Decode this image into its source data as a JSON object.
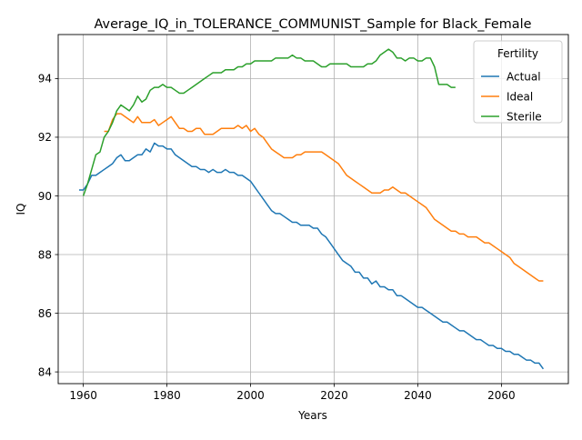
{
  "chart_data": {
    "type": "line",
    "title": "Average_IQ_in_TOLERANCE_COMMUNIST_Sample for Black_Female",
    "xlabel": "Years",
    "ylabel": "IQ",
    "xlim": [
      1954,
      2076
    ],
    "ylim": [
      83.6,
      95.5
    ],
    "xticks": [
      1960,
      1980,
      2000,
      2020,
      2040,
      2060
    ],
    "yticks": [
      84,
      86,
      88,
      90,
      92,
      94
    ],
    "grid": true,
    "legend": {
      "title": "Fertility",
      "position": "upper-right"
    },
    "series": [
      {
        "name": "Actual",
        "color": "#1f77b4",
        "x": [
          1959,
          1960,
          1961,
          1962,
          1963,
          1964,
          1965,
          1966,
          1967,
          1968,
          1969,
          1970,
          1971,
          1972,
          1973,
          1974,
          1975,
          1976,
          1977,
          1978,
          1979,
          1980,
          1981,
          1982,
          1983,
          1984,
          1985,
          1986,
          1987,
          1988,
          1989,
          1990,
          1991,
          1992,
          1993,
          1994,
          1995,
          1996,
          1997,
          1998,
          1999,
          2000,
          2001,
          2002,
          2003,
          2004,
          2005,
          2006,
          2007,
          2008,
          2009,
          2010,
          2011,
          2012,
          2013,
          2014,
          2015,
          2016,
          2017,
          2018,
          2019,
          2020,
          2021,
          2022,
          2023,
          2024,
          2025,
          2026,
          2027,
          2028,
          2029,
          2030,
          2031,
          2032,
          2033,
          2034,
          2035,
          2036,
          2037,
          2038,
          2039,
          2040,
          2041,
          2042,
          2043,
          2044,
          2045,
          2046,
          2047,
          2048,
          2049,
          2050,
          2051,
          2052,
          2053,
          2054,
          2055,
          2056,
          2057,
          2058,
          2059,
          2060,
          2061,
          2062,
          2063,
          2064,
          2065,
          2066,
          2067,
          2068,
          2069,
          2070
        ],
        "values": [
          90.2,
          90.2,
          90.4,
          90.7,
          90.7,
          90.8,
          90.9,
          91.0,
          91.1,
          91.3,
          91.4,
          91.2,
          91.2,
          91.3,
          91.4,
          91.4,
          91.6,
          91.5,
          91.8,
          91.7,
          91.7,
          91.6,
          91.6,
          91.4,
          91.3,
          91.2,
          91.1,
          91.0,
          91.0,
          90.9,
          90.9,
          90.8,
          90.9,
          90.8,
          90.8,
          90.9,
          90.8,
          90.8,
          90.7,
          90.7,
          90.6,
          90.5,
          90.3,
          90.1,
          89.9,
          89.7,
          89.5,
          89.4,
          89.4,
          89.3,
          89.2,
          89.1,
          89.1,
          89.0,
          89.0,
          89.0,
          88.9,
          88.9,
          88.7,
          88.6,
          88.4,
          88.2,
          88.0,
          87.8,
          87.7,
          87.6,
          87.4,
          87.4,
          87.2,
          87.2,
          87.0,
          87.1,
          86.9,
          86.9,
          86.8,
          86.8,
          86.6,
          86.6,
          86.5,
          86.4,
          86.3,
          86.2,
          86.2,
          86.1,
          86.0,
          85.9,
          85.8,
          85.7,
          85.7,
          85.6,
          85.5,
          85.4,
          85.4,
          85.3,
          85.2,
          85.1,
          85.1,
          85.0,
          84.9,
          84.9,
          84.8,
          84.8,
          84.7,
          84.7,
          84.6,
          84.6,
          84.5,
          84.4,
          84.4,
          84.3,
          84.3,
          84.1
        ]
      },
      {
        "name": "Ideal",
        "color": "#ff7f0e",
        "x": [
          1965,
          1966,
          1967,
          1968,
          1969,
          1970,
          1971,
          1972,
          1973,
          1974,
          1975,
          1976,
          1977,
          1978,
          1979,
          1980,
          1981,
          1982,
          1983,
          1984,
          1985,
          1986,
          1987,
          1988,
          1989,
          1990,
          1991,
          1992,
          1993,
          1994,
          1995,
          1996,
          1997,
          1998,
          1999,
          2000,
          2001,
          2002,
          2003,
          2004,
          2005,
          2006,
          2007,
          2008,
          2009,
          2010,
          2011,
          2012,
          2013,
          2014,
          2015,
          2016,
          2017,
          2018,
          2019,
          2020,
          2021,
          2022,
          2023,
          2024,
          2025,
          2026,
          2027,
          2028,
          2029,
          2030,
          2031,
          2032,
          2033,
          2034,
          2035,
          2036,
          2037,
          2038,
          2039,
          2040,
          2041,
          2042,
          2043,
          2044,
          2045,
          2046,
          2047,
          2048,
          2049,
          2050,
          2051,
          2052,
          2053,
          2054,
          2055,
          2056,
          2057,
          2058,
          2059,
          2060,
          2061,
          2062,
          2063,
          2064,
          2065,
          2066,
          2067,
          2068,
          2069,
          2070
        ],
        "values": [
          92.2,
          92.2,
          92.6,
          92.8,
          92.8,
          92.7,
          92.6,
          92.5,
          92.7,
          92.5,
          92.5,
          92.5,
          92.6,
          92.4,
          92.5,
          92.6,
          92.7,
          92.5,
          92.3,
          92.3,
          92.2,
          92.2,
          92.3,
          92.3,
          92.1,
          92.1,
          92.1,
          92.2,
          92.3,
          92.3,
          92.3,
          92.3,
          92.4,
          92.3,
          92.4,
          92.2,
          92.3,
          92.1,
          92.0,
          91.8,
          91.6,
          91.5,
          91.4,
          91.3,
          91.3,
          91.3,
          91.4,
          91.4,
          91.5,
          91.5,
          91.5,
          91.5,
          91.5,
          91.4,
          91.3,
          91.2,
          91.1,
          90.9,
          90.7,
          90.6,
          90.5,
          90.4,
          90.3,
          90.2,
          90.1,
          90.1,
          90.1,
          90.2,
          90.2,
          90.3,
          90.2,
          90.1,
          90.1,
          90.0,
          89.9,
          89.8,
          89.7,
          89.6,
          89.4,
          89.2,
          89.1,
          89.0,
          88.9,
          88.8,
          88.8,
          88.7,
          88.7,
          88.6,
          88.6,
          88.6,
          88.5,
          88.4,
          88.4,
          88.3,
          88.2,
          88.1,
          88.0,
          87.9,
          87.7,
          87.6,
          87.5,
          87.4,
          87.3,
          87.2,
          87.1,
          87.1
        ]
      },
      {
        "name": "Sterile",
        "color": "#2ca02c",
        "x": [
          1960,
          1961,
          1962,
          1963,
          1964,
          1965,
          1966,
          1967,
          1968,
          1969,
          1970,
          1971,
          1972,
          1973,
          1974,
          1975,
          1976,
          1977,
          1978,
          1979,
          1980,
          1981,
          1982,
          1983,
          1984,
          1985,
          1986,
          1987,
          1988,
          1989,
          1990,
          1991,
          1992,
          1993,
          1994,
          1995,
          1996,
          1997,
          1998,
          1999,
          2000,
          2001,
          2002,
          2003,
          2004,
          2005,
          2006,
          2007,
          2008,
          2009,
          2010,
          2011,
          2012,
          2013,
          2014,
          2015,
          2016,
          2017,
          2018,
          2019,
          2020,
          2021,
          2022,
          2023,
          2024,
          2025,
          2026,
          2027,
          2028,
          2029,
          2030,
          2031,
          2032,
          2033,
          2034,
          2035,
          2036,
          2037,
          2038,
          2039,
          2040,
          2041,
          2042,
          2043,
          2044,
          2045,
          2046,
          2047,
          2048,
          2049
        ],
        "values": [
          90.0,
          90.4,
          90.9,
          91.4,
          91.5,
          92.0,
          92.2,
          92.5,
          92.9,
          93.1,
          93.0,
          92.9,
          93.1,
          93.4,
          93.2,
          93.3,
          93.6,
          93.7,
          93.7,
          93.8,
          93.7,
          93.7,
          93.6,
          93.5,
          93.5,
          93.6,
          93.7,
          93.8,
          93.9,
          94.0,
          94.1,
          94.2,
          94.2,
          94.2,
          94.3,
          94.3,
          94.3,
          94.4,
          94.4,
          94.5,
          94.5,
          94.6,
          94.6,
          94.6,
          94.6,
          94.6,
          94.7,
          94.7,
          94.7,
          94.7,
          94.8,
          94.7,
          94.7,
          94.6,
          94.6,
          94.6,
          94.5,
          94.4,
          94.4,
          94.5,
          94.5,
          94.5,
          94.5,
          94.5,
          94.4,
          94.4,
          94.4,
          94.4,
          94.5,
          94.5,
          94.6,
          94.8,
          94.9,
          95.0,
          94.9,
          94.7,
          94.7,
          94.6,
          94.7,
          94.7,
          94.6,
          94.6,
          94.7,
          94.7,
          94.4,
          93.8,
          93.8,
          93.8,
          93.7,
          93.7
        ]
      }
    ]
  }
}
